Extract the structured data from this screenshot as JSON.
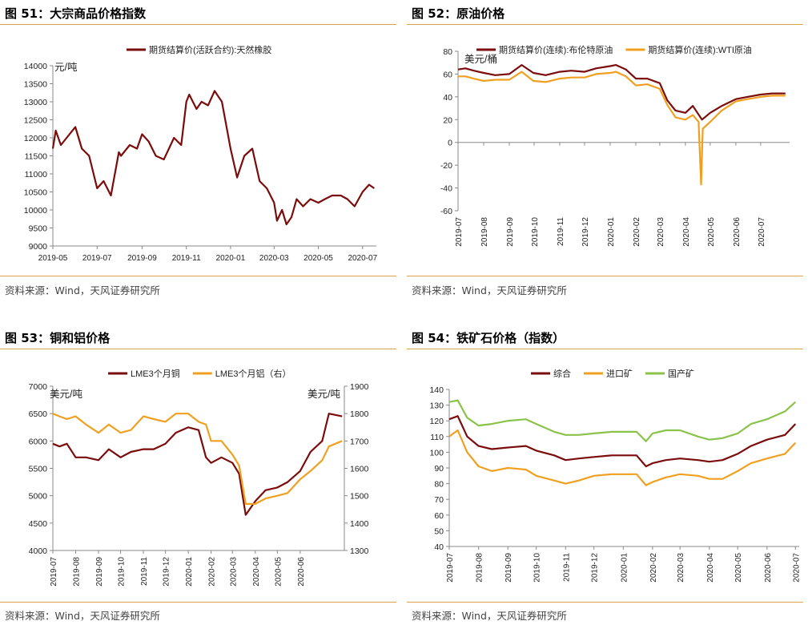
{
  "panels": [
    {
      "title": "图 51：大宗商品价格指数",
      "source": "资料来源：Wind，天风证券研究所"
    },
    {
      "title": "图 52：原油价格",
      "source": "资料来源：Wind，天风证券研究所"
    },
    {
      "title": "图 53：铜和铝价格",
      "source": "资料来源：Wind，天风证券研究所"
    },
    {
      "title": "图 54：铁矿石价格（指数）",
      "source": "资料来源：Wind，天风证券研究所"
    }
  ],
  "chart_data": [
    {
      "type": "line",
      "ylabel": "元/吨",
      "ylim": [
        9000,
        14000
      ],
      "yticks": [
        9000,
        9500,
        10000,
        10500,
        11000,
        11500,
        12000,
        12500,
        13000,
        13500,
        14000
      ],
      "xlim": [
        "2019-05-01",
        "2020-07-20"
      ],
      "xticks": [
        "2019-05",
        "2019-07",
        "2019-09",
        "2019-11",
        "2020-01",
        "2020-03",
        "2020-05",
        "2020-07"
      ],
      "legend_position": "top-center",
      "series": [
        {
          "name": "期货结算价(活跃合约):天然橡胶",
          "color": "#7b0c0c",
          "x": [
            "2019-05-01",
            "2019-05-05",
            "2019-05-12",
            "2019-05-20",
            "2019-06-01",
            "2019-06-10",
            "2019-06-20",
            "2019-07-01",
            "2019-07-10",
            "2019-07-20",
            "2019-07-31",
            "2019-08-03",
            "2019-08-15",
            "2019-08-25",
            "2019-09-01",
            "2019-09-10",
            "2019-09-20",
            "2019-10-01",
            "2019-10-15",
            "2019-10-25",
            "2019-11-01",
            "2019-11-05",
            "2019-11-15",
            "2019-11-22",
            "2019-12-01",
            "2019-12-10",
            "2019-12-20",
            "2020-01-01",
            "2020-01-10",
            "2020-01-20",
            "2020-01-31",
            "2020-02-10",
            "2020-02-20",
            "2020-03-01",
            "2020-03-05",
            "2020-03-12",
            "2020-03-18",
            "2020-03-25",
            "2020-04-01",
            "2020-04-10",
            "2020-04-20",
            "2020-05-01",
            "2020-05-10",
            "2020-05-20",
            "2020-06-01",
            "2020-06-10",
            "2020-06-20",
            "2020-07-01",
            "2020-07-10",
            "2020-07-17"
          ],
          "y": [
            11700,
            12200,
            11800,
            12000,
            12300,
            11700,
            11500,
            10600,
            10800,
            10400,
            11600,
            11500,
            11800,
            11700,
            12100,
            11900,
            11500,
            11400,
            12000,
            11800,
            13000,
            13200,
            12800,
            13000,
            12900,
            13300,
            13000,
            11700,
            10900,
            11500,
            11700,
            10800,
            10600,
            10200,
            9700,
            10000,
            9600,
            9800,
            10300,
            10100,
            10300,
            10200,
            10300,
            10400,
            10400,
            10300,
            10100,
            10500,
            10700,
            10600
          ]
        }
      ]
    },
    {
      "type": "line",
      "ylabel": "美元/桶",
      "ylim": [
        -60,
        80
      ],
      "yticks": [
        -60,
        -40,
        -20,
        0,
        20,
        40,
        60,
        80
      ],
      "xlim": [
        "2019-07-01",
        "2020-08-05"
      ],
      "xticks": [
        "2019-07",
        "2019-08",
        "2019-09",
        "2019-10",
        "2019-11",
        "2019-12",
        "2020-01",
        "2020-02",
        "2020-03",
        "2020-04",
        "2020-05",
        "2020-06",
        "2020-07"
      ],
      "legend_position": "top",
      "series": [
        {
          "name": "期货结算价(连续):布伦特原油",
          "color": "#7b0c0c",
          "x": [
            "2019-07-01",
            "2019-07-10",
            "2019-07-20",
            "2019-08-01",
            "2019-08-15",
            "2019-09-01",
            "2019-09-16",
            "2019-09-30",
            "2019-10-15",
            "2019-11-01",
            "2019-11-15",
            "2019-12-01",
            "2019-12-15",
            "2020-01-01",
            "2020-01-08",
            "2020-01-20",
            "2020-02-01",
            "2020-02-15",
            "2020-03-01",
            "2020-03-10",
            "2020-03-20",
            "2020-04-01",
            "2020-04-10",
            "2020-04-21",
            "2020-05-01",
            "2020-05-15",
            "2020-06-01",
            "2020-06-15",
            "2020-07-01",
            "2020-07-15",
            "2020-07-31"
          ],
          "y": [
            64,
            65,
            63,
            61,
            59,
            60,
            68,
            61,
            59,
            62,
            63,
            62,
            65,
            67,
            68,
            64,
            56,
            56,
            52,
            37,
            28,
            26,
            32,
            20,
            26,
            32,
            38,
            40,
            42,
            43,
            43
          ]
        },
        {
          "name": "期货结算价(连续):WTI原油",
          "color": "#f0a020",
          "x": [
            "2019-07-01",
            "2019-07-10",
            "2019-07-20",
            "2019-08-01",
            "2019-08-15",
            "2019-09-01",
            "2019-09-16",
            "2019-09-30",
            "2019-10-15",
            "2019-11-01",
            "2019-11-15",
            "2019-12-01",
            "2019-12-15",
            "2020-01-01",
            "2020-01-08",
            "2020-01-20",
            "2020-02-01",
            "2020-02-15",
            "2020-03-01",
            "2020-03-10",
            "2020-03-20",
            "2020-04-01",
            "2020-04-10",
            "2020-04-17",
            "2020-04-20",
            "2020-04-22",
            "2020-05-01",
            "2020-05-15",
            "2020-06-01",
            "2020-06-15",
            "2020-07-01",
            "2020-07-15",
            "2020-07-31"
          ],
          "y": [
            58,
            58,
            56,
            54,
            55,
            55,
            62,
            54,
            53,
            56,
            57,
            57,
            60,
            61,
            62,
            58,
            50,
            51,
            47,
            33,
            22,
            20,
            24,
            18,
            -37,
            12,
            18,
            28,
            36,
            38,
            40,
            41,
            41
          ]
        }
      ]
    },
    {
      "type": "line",
      "ylabel": "美元/吨",
      "ylabel_right": "美元/吨",
      "ylim": [
        4000,
        7000
      ],
      "ylim_right": [
        1300,
        1900
      ],
      "yticks": [
        4000,
        4500,
        5000,
        5500,
        6000,
        6500,
        7000
      ],
      "yticks_right": [
        1300,
        1400,
        1500,
        1600,
        1700,
        1800,
        1900
      ],
      "xlim": [
        "2019-07-01",
        "2020-07-31"
      ],
      "xticks": [
        "2019-07",
        "2019-08",
        "2019-09",
        "2019-10",
        "2019-11",
        "2019-12",
        "2020-01",
        "2020-02",
        "2020-03",
        "2020-04",
        "2020-05",
        "2020-06"
      ],
      "legend_position": "top",
      "series": [
        {
          "name": "LME3个月铜",
          "axis": "left",
          "color": "#7b0c0c",
          "x": [
            "2019-07-01",
            "2019-07-10",
            "2019-07-20",
            "2019-08-01",
            "2019-08-15",
            "2019-09-01",
            "2019-09-15",
            "2019-10-01",
            "2019-10-15",
            "2019-11-01",
            "2019-11-15",
            "2019-12-01",
            "2019-12-15",
            "2020-01-01",
            "2020-01-15",
            "2020-01-25",
            "2020-02-01",
            "2020-02-15",
            "2020-03-01",
            "2020-03-10",
            "2020-03-19",
            "2020-04-01",
            "2020-04-15",
            "2020-05-01",
            "2020-05-15",
            "2020-06-01",
            "2020-06-15",
            "2020-07-01",
            "2020-07-10",
            "2020-07-28"
          ],
          "y": [
            5950,
            5900,
            5950,
            5700,
            5700,
            5650,
            5850,
            5700,
            5800,
            5850,
            5850,
            5950,
            6150,
            6250,
            6200,
            5700,
            5600,
            5700,
            5600,
            5400,
            4650,
            4900,
            5100,
            5150,
            5250,
            5450,
            5800,
            6000,
            6500,
            6450
          ]
        },
        {
          "name": "LME3个月铝（右）",
          "axis": "right",
          "color": "#f0a020",
          "x": [
            "2019-07-01",
            "2019-07-10",
            "2019-07-20",
            "2019-08-01",
            "2019-08-15",
            "2019-09-01",
            "2019-09-15",
            "2019-10-01",
            "2019-10-15",
            "2019-11-01",
            "2019-11-15",
            "2019-12-01",
            "2019-12-15",
            "2020-01-01",
            "2020-01-15",
            "2020-01-25",
            "2020-02-01",
            "2020-02-15",
            "2020-03-01",
            "2020-03-10",
            "2020-03-19",
            "2020-04-01",
            "2020-04-15",
            "2020-05-01",
            "2020-05-15",
            "2020-06-01",
            "2020-06-15",
            "2020-07-01",
            "2020-07-10",
            "2020-07-28"
          ],
          "y": [
            1800,
            1790,
            1780,
            1790,
            1760,
            1730,
            1760,
            1730,
            1740,
            1790,
            1780,
            1770,
            1800,
            1800,
            1770,
            1760,
            1700,
            1700,
            1650,
            1610,
            1470,
            1470,
            1490,
            1500,
            1510,
            1560,
            1590,
            1630,
            1680,
            1700
          ]
        }
      ]
    },
    {
      "type": "line",
      "ylim": [
        40,
        140
      ],
      "yticks": [
        40,
        50,
        60,
        70,
        80,
        90,
        100,
        110,
        120,
        130,
        140
      ],
      "xlim": [
        "2019-07-01",
        "2020-07-05"
      ],
      "xticks": [
        "2019-07",
        "2019-08",
        "2019-09",
        "2019-10",
        "2019-11",
        "2019-12",
        "2020-01",
        "2020-02",
        "2020-03",
        "2020-04",
        "2020-05",
        "2020-06",
        "2020-07"
      ],
      "legend_position": "top",
      "series": [
        {
          "name": "综合",
          "color": "#7b0c0c",
          "x": [
            "2019-07-01",
            "2019-07-10",
            "2019-07-20",
            "2019-08-01",
            "2019-08-15",
            "2019-09-01",
            "2019-09-20",
            "2019-10-01",
            "2019-10-20",
            "2019-11-01",
            "2019-11-15",
            "2019-12-01",
            "2019-12-20",
            "2020-01-01",
            "2020-01-15",
            "2020-01-25",
            "2020-02-01",
            "2020-02-15",
            "2020-03-01",
            "2020-03-20",
            "2020-04-01",
            "2020-04-15",
            "2020-05-01",
            "2020-05-15",
            "2020-06-01",
            "2020-06-20",
            "2020-07-01"
          ],
          "y": [
            121,
            123,
            110,
            104,
            102,
            103,
            104,
            101,
            98,
            95,
            96,
            97,
            98,
            98,
            98,
            91,
            93,
            95,
            96,
            95,
            94,
            95,
            99,
            104,
            108,
            111,
            118
          ]
        },
        {
          "name": "进口矿",
          "color": "#f0a020",
          "x": [
            "2019-07-01",
            "2019-07-10",
            "2019-07-20",
            "2019-08-01",
            "2019-08-15",
            "2019-09-01",
            "2019-09-20",
            "2019-10-01",
            "2019-10-20",
            "2019-11-01",
            "2019-11-15",
            "2019-12-01",
            "2019-12-20",
            "2020-01-01",
            "2020-01-15",
            "2020-01-25",
            "2020-02-01",
            "2020-02-15",
            "2020-03-01",
            "2020-03-20",
            "2020-04-01",
            "2020-04-15",
            "2020-05-01",
            "2020-05-15",
            "2020-06-01",
            "2020-06-20",
            "2020-07-01"
          ],
          "y": [
            110,
            114,
            100,
            91,
            88,
            90,
            89,
            85,
            82,
            80,
            82,
            85,
            86,
            86,
            86,
            79,
            81,
            84,
            86,
            85,
            83,
            83,
            88,
            93,
            96,
            99,
            106
          ]
        },
        {
          "name": "国产矿",
          "color": "#8bc34a",
          "x": [
            "2019-07-01",
            "2019-07-10",
            "2019-07-20",
            "2019-08-01",
            "2019-08-15",
            "2019-09-01",
            "2019-09-20",
            "2019-10-01",
            "2019-10-20",
            "2019-11-01",
            "2019-11-15",
            "2019-12-01",
            "2019-12-20",
            "2020-01-01",
            "2020-01-15",
            "2020-01-25",
            "2020-02-01",
            "2020-02-15",
            "2020-03-01",
            "2020-03-20",
            "2020-04-01",
            "2020-04-15",
            "2020-05-01",
            "2020-05-15",
            "2020-06-01",
            "2020-06-20",
            "2020-07-01"
          ],
          "y": [
            132,
            133,
            122,
            117,
            118,
            120,
            121,
            118,
            113,
            111,
            111,
            112,
            113,
            113,
            113,
            107,
            112,
            114,
            114,
            110,
            108,
            109,
            112,
            118,
            121,
            126,
            132
          ]
        }
      ]
    }
  ]
}
